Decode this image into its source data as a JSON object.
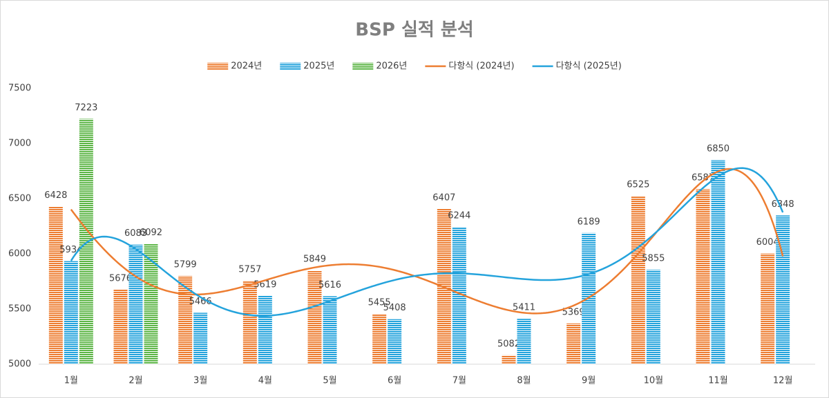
{
  "chart_data": {
    "type": "bar",
    "title": "BSP 실적 분석",
    "categories": [
      "1월",
      "2월",
      "3월",
      "4월",
      "5월",
      "6월",
      "7월",
      "8월",
      "9월",
      "10월",
      "11월",
      "12월"
    ],
    "series": [
      {
        "name": "2024년",
        "color": "#ed7d31",
        "values": [
          6428,
          5676,
          5799,
          5757,
          5849,
          5455,
          6407,
          5082,
          5369,
          6525,
          6587,
          6004
        ]
      },
      {
        "name": "2025년",
        "color": "#24a3dc",
        "values": [
          5934,
          6083,
          5466,
          5619,
          5616,
          5408,
          6244,
          5411,
          6189,
          5855,
          6850,
          6348
        ]
      },
      {
        "name": "2026년",
        "color": "#5cb546",
        "values": [
          7223,
          6092,
          null,
          null,
          null,
          null,
          null,
          null,
          null,
          null,
          null,
          null
        ]
      }
    ],
    "trendlines": [
      {
        "name": "다항식 (2024년)",
        "series": 0,
        "order": 6,
        "color": "#ed7d31"
      },
      {
        "name": "다항식 (2025년)",
        "series": 1,
        "order": 6,
        "color": "#24a3dc"
      }
    ],
    "ylim": [
      5000,
      7500
    ],
    "yticks": [
      5000,
      5500,
      6000,
      6500,
      7000,
      7500
    ],
    "grid": false,
    "legend": "top"
  }
}
